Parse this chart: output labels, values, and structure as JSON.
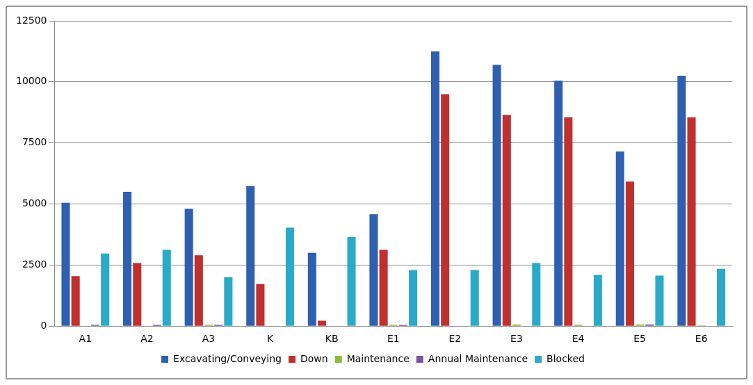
{
  "chart_data": {
    "type": "bar",
    "categories": [
      "A1",
      "A2",
      "A3",
      "K",
      "KB",
      "E1",
      "E2",
      "E3",
      "E4",
      "E5",
      "E6"
    ],
    "series": [
      {
        "name": "Excavating/Conveying",
        "color": "#2f5fb0",
        "values": [
          5050,
          5500,
          4800,
          5730,
          3000,
          4580,
          11250,
          10700,
          10050,
          7150,
          10250
        ]
      },
      {
        "name": "Down",
        "color": "#c0302e",
        "values": [
          2050,
          2580,
          2900,
          1720,
          220,
          3120,
          9500,
          8650,
          8550,
          5920,
          8550
        ]
      },
      {
        "name": "Maintenance",
        "color": "#8dba3b",
        "values": [
          10,
          null,
          50,
          10,
          10,
          50,
          null,
          60,
          50,
          60,
          30
        ]
      },
      {
        "name": "Annual Maintenance",
        "color": "#7a52a0",
        "values": [
          50,
          50,
          50,
          0,
          0,
          50,
          null,
          null,
          null,
          60,
          0
        ]
      },
      {
        "name": "Blocked",
        "color": "#2aaac8",
        "values": [
          2970,
          3120,
          2000,
          4030,
          3650,
          2300,
          2300,
          2580,
          2100,
          2070,
          2350
        ]
      }
    ],
    "ylim": [
      0,
      12500
    ],
    "yticks": [
      0,
      2500,
      5000,
      7500,
      10000,
      12500
    ],
    "grid": "y",
    "legend": "bottom"
  }
}
